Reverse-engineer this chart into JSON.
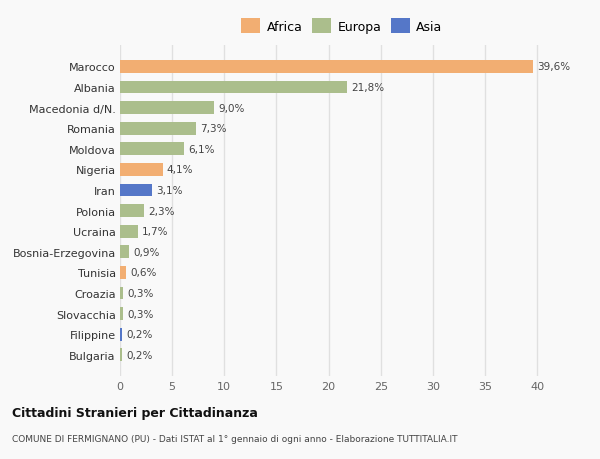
{
  "countries": [
    "Bulgaria",
    "Filippine",
    "Slovacchia",
    "Croazia",
    "Tunisia",
    "Bosnia-Erzegovina",
    "Ucraina",
    "Polonia",
    "Iran",
    "Nigeria",
    "Moldova",
    "Romania",
    "Macedonia d/N.",
    "Albania",
    "Marocco"
  ],
  "values": [
    0.2,
    0.2,
    0.3,
    0.3,
    0.6,
    0.9,
    1.7,
    2.3,
    3.1,
    4.1,
    6.1,
    7.3,
    9.0,
    21.8,
    39.6
  ],
  "labels": [
    "0,2%",
    "0,2%",
    "0,3%",
    "0,3%",
    "0,6%",
    "0,9%",
    "1,7%",
    "2,3%",
    "3,1%",
    "4,1%",
    "6,1%",
    "7,3%",
    "9,0%",
    "21,8%",
    "39,6%"
  ],
  "continents": [
    "Europa",
    "Asia",
    "Europa",
    "Europa",
    "Africa",
    "Europa",
    "Europa",
    "Europa",
    "Asia",
    "Africa",
    "Europa",
    "Europa",
    "Europa",
    "Europa",
    "Africa"
  ],
  "colors": {
    "Africa": "#F2AE72",
    "Europa": "#ABBE8C",
    "Asia": "#5577C8"
  },
  "legend_labels": [
    "Africa",
    "Europa",
    "Asia"
  ],
  "legend_colors": [
    "#F2AE72",
    "#ABBE8C",
    "#5577C8"
  ],
  "xlim": [
    0,
    42
  ],
  "xticks": [
    0,
    5,
    10,
    15,
    20,
    25,
    30,
    35,
    40
  ],
  "title": "Cittadini Stranieri per Cittadinanza",
  "subtitle": "COMUNE DI FERMIGNANO (PU) - Dati ISTAT al 1° gennaio di ogni anno - Elaborazione TUTTITALIA.IT",
  "background_color": "#f9f9f9",
  "grid_color": "#e0e0e0",
  "bar_height": 0.62
}
